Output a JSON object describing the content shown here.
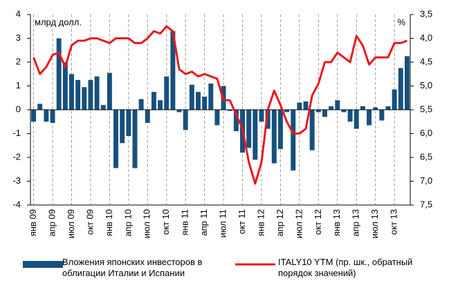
{
  "chart_data": {
    "type": "combo",
    "y_label": "млрд долл.",
    "y2_label": "%",
    "categories": [
      "янв 09",
      null,
      null,
      "апр 09",
      null,
      null,
      "июл 09",
      null,
      null,
      "окт 09",
      null,
      null,
      "янв 10",
      null,
      null,
      "апр 10",
      null,
      null,
      "июл 10",
      null,
      null,
      "окт 10",
      null,
      null,
      "янв 11",
      null,
      null,
      "апр 11",
      null,
      null,
      "июл 11",
      null,
      null,
      "окт 11",
      null,
      null,
      "янв 12",
      null,
      null,
      "апр 12",
      null,
      null,
      "июл 12",
      null,
      null,
      "окт 12",
      null,
      null,
      "янв 13",
      null,
      null,
      "апр 13",
      null,
      null,
      "июл 13",
      null,
      null,
      "окт 13",
      null,
      null
    ],
    "series": [
      {
        "name": "Вложения японских инвесторов в облигации Италии и Испании",
        "type": "bar",
        "color": "#17507d",
        "values": [
          -0.5,
          0.25,
          -0.5,
          -0.55,
          3.0,
          2.0,
          1.5,
          1.25,
          0.95,
          1.25,
          1.4,
          0.2,
          1.55,
          -2.45,
          -1.4,
          -1.1,
          -2.45,
          0.45,
          -0.55,
          0.75,
          0.4,
          1.4,
          3.3,
          -0.1,
          -0.85,
          1.05,
          0.75,
          0.55,
          1.1,
          -0.65,
          1.0,
          -0.05,
          -0.9,
          -1.8,
          -1.6,
          -2.1,
          -0.5,
          -0.8,
          -2.25,
          -1.65,
          -0.1,
          -2.55,
          0.3,
          0.35,
          -1.7,
          -0.1,
          -0.3,
          0.15,
          0.4,
          -0.1,
          -0.5,
          -0.8,
          0.15,
          -0.65,
          0.1,
          -0.45,
          0.15,
          0.85,
          1.75,
          2.25
        ]
      },
      {
        "name": "ITALY10 YTM (пр. шк., обратный порядок значений)",
        "type": "line",
        "axis": "y2",
        "color": "#e8191c",
        "values": [
          4.4,
          4.75,
          4.6,
          4.35,
          4.3,
          4.6,
          4.15,
          4.05,
          4.05,
          4.0,
          4.0,
          4.05,
          4.1,
          4.0,
          4.0,
          4.0,
          4.1,
          4.1,
          4.0,
          3.85,
          3.9,
          3.75,
          3.85,
          4.65,
          4.75,
          4.7,
          4.8,
          4.75,
          4.8,
          4.85,
          5.3,
          5.3,
          5.6,
          5.9,
          6.6,
          7.05,
          6.6,
          5.5,
          5.1,
          5.4,
          5.75,
          6.0,
          6.0,
          5.9,
          5.2,
          4.95,
          4.5,
          4.5,
          4.3,
          4.4,
          4.5,
          3.95,
          4.15,
          4.55,
          4.4,
          4.4,
          4.4,
          4.1,
          4.1,
          4.05
        ]
      }
    ],
    "ylim": [
      -4,
      4
    ],
    "yticks": [
      -4,
      -3,
      -2,
      -1,
      0,
      1,
      2,
      3,
      4
    ],
    "y2lim": [
      3.5,
      7.5
    ],
    "y2_inverted": true,
    "y2ticks": [
      {
        "value": 3.5,
        "label": "3,5"
      },
      {
        "value": 4.0,
        "label": "4,0"
      },
      {
        "value": 4.5,
        "label": "4,5"
      },
      {
        "value": 5.0,
        "label": "5,0"
      },
      {
        "value": 5.5,
        "label": "5,5"
      },
      {
        "value": 6.0,
        "label": "6,0"
      },
      {
        "value": 6.5,
        "label": "6,5"
      },
      {
        "value": 7.0,
        "label": "7,0"
      },
      {
        "value": 7.5,
        "label": "7,5"
      }
    ],
    "grid": true
  }
}
